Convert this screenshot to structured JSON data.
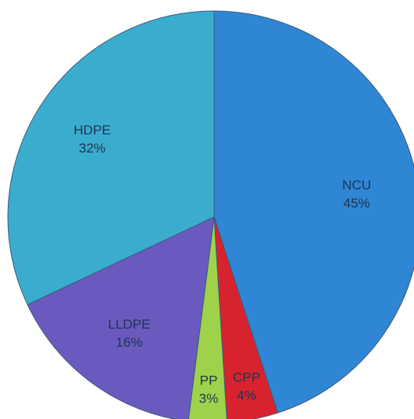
{
  "chart_data": {
    "type": "pie",
    "categories": [
      "NCU",
      "CPP",
      "PP",
      "LLDPE",
      "HDPE"
    ],
    "values": [
      45,
      4,
      3,
      16,
      32
    ],
    "value_labels": [
      "45%",
      "4%",
      "3%",
      "16%",
      "32%"
    ],
    "colors": [
      "#2f86d4",
      "#d8232e",
      "#9fd24a",
      "#6a5ac0",
      "#3aadcf"
    ]
  }
}
